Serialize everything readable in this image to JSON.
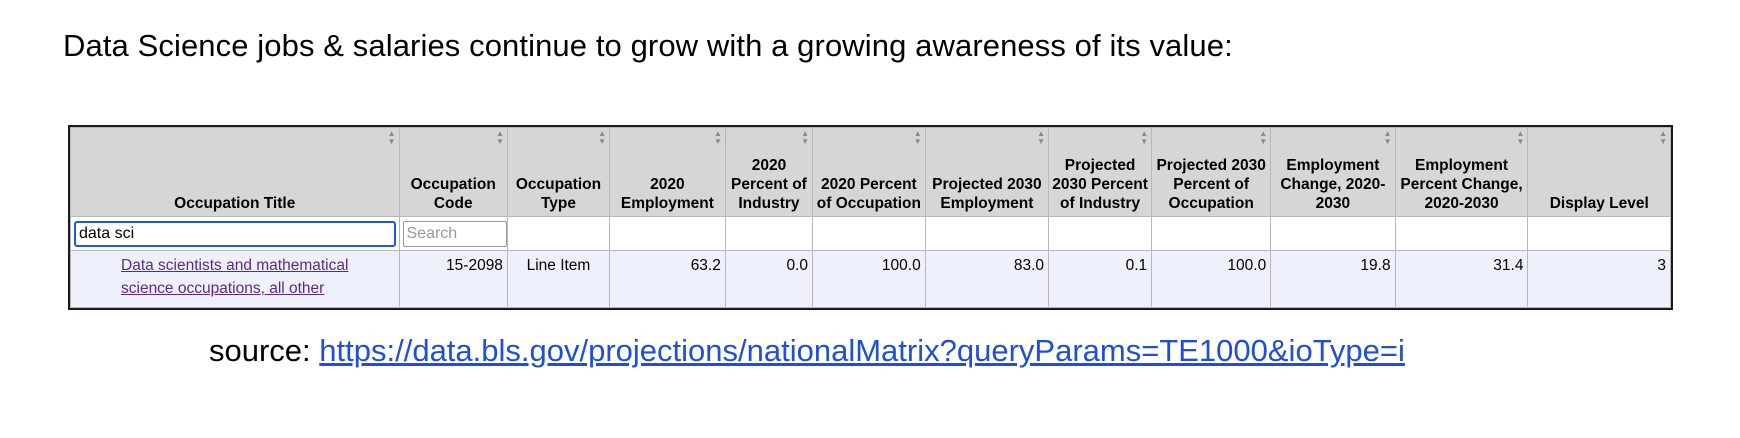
{
  "headline": "Data Science jobs & salaries continue to grow with a growing awareness of its value:",
  "table": {
    "sort_icon": "sort-arrows-icon",
    "columns": [
      "Occupation Title",
      "Occupation Code",
      "Occupation Type",
      "2020 Employment",
      "2020 Percent of Industry",
      "2020 Percent of Occupation",
      "Projected 2030 Employment",
      "Projected 2030 Percent of Industry",
      "Projected 2030 Percent of Occupation",
      "Employment Change, 2020-2030",
      "Employment Percent Change, 2020-2030",
      "Display Level"
    ],
    "filters": {
      "title_value": "data sci",
      "code_placeholder": "Search"
    },
    "rows": [
      {
        "title": "Data scientists and mathematical science occupations, all other",
        "code": "15-2098",
        "type": "Line Item",
        "emp_2020": "63.2",
        "pct_industry_2020": "0.0",
        "pct_occupation_2020": "100.0",
        "emp_2030": "83.0",
        "pct_industry_2030": "0.1",
        "pct_occupation_2030": "100.0",
        "emp_change": "19.8",
        "emp_pct_change": "31.4",
        "display_level": "3"
      }
    ]
  },
  "source": {
    "label": "source: ",
    "url": "https://data.bls.gov/projections/nationalMatrix?queryParams=TE1000&ioType=i"
  }
}
